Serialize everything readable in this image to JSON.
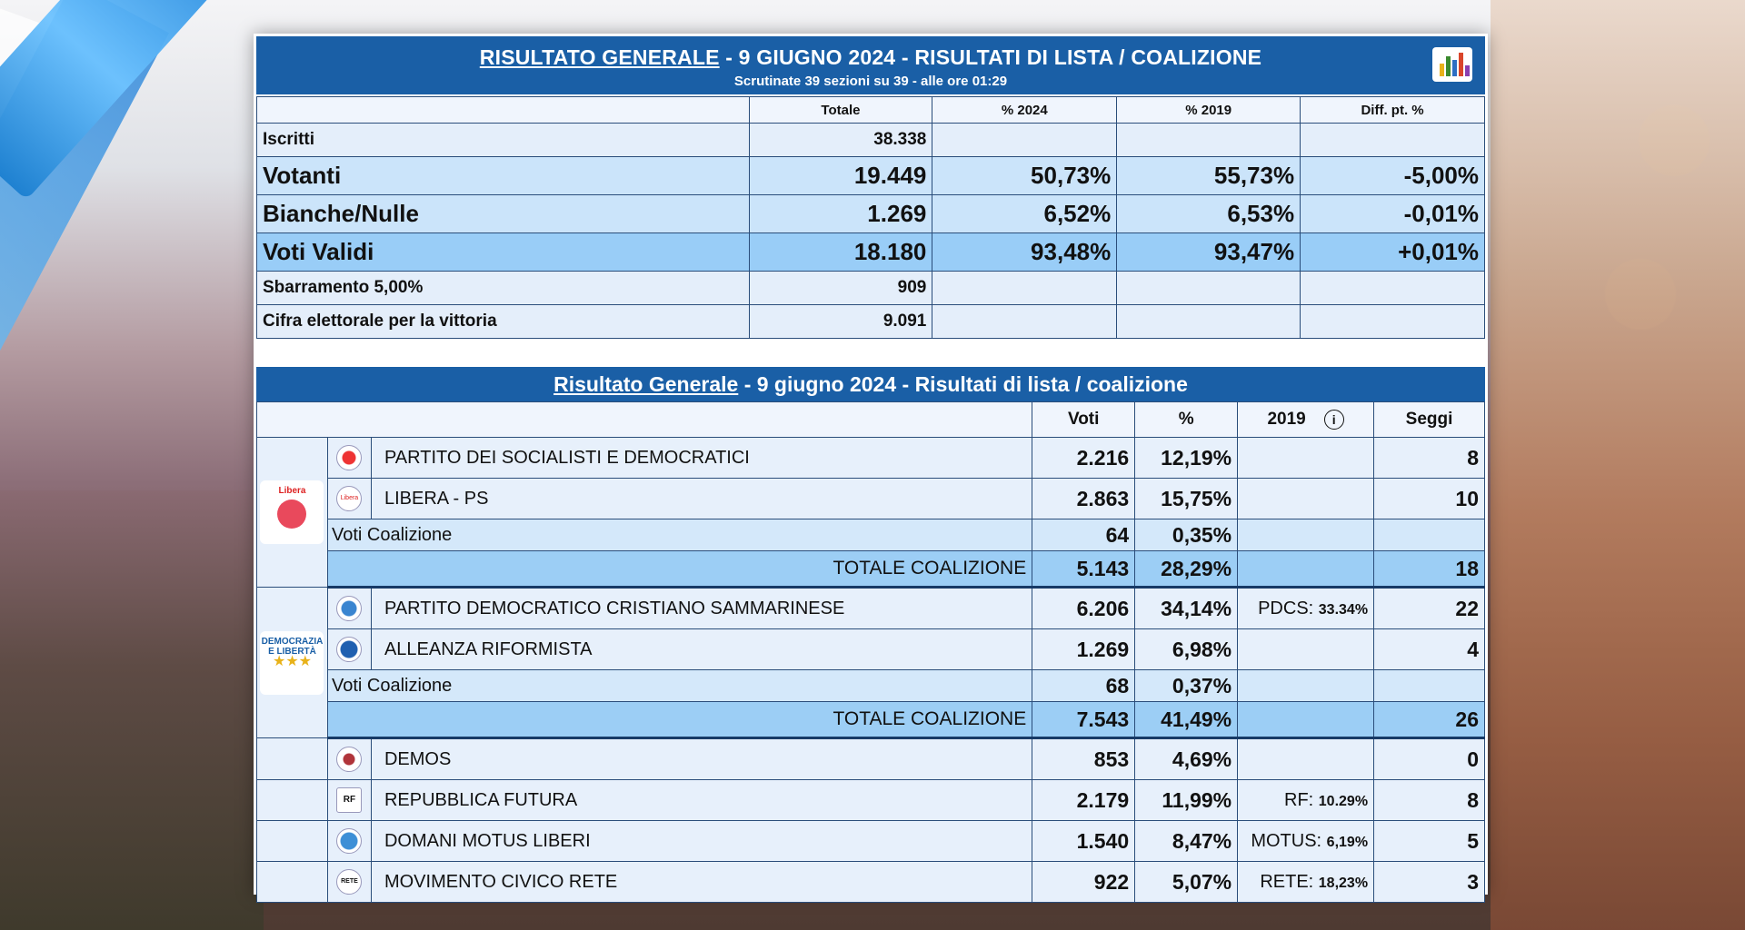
{
  "header1": {
    "title_link": "RISULTATO GENERALE",
    "title_rest": " - 9 GIUGNO 2024 - RISULTATI DI LISTA / COALIZIONE",
    "subtitle": "Scrutinate 39 sezioni su 39 - alle ore 01:29"
  },
  "summary": {
    "headers": [
      "Totale",
      "% 2024",
      "% 2019",
      "Diff. pt. %"
    ],
    "rows": [
      {
        "label": "Iscritti",
        "total": "38.338",
        "p2024": "",
        "p2019": "",
        "diff": ""
      },
      {
        "label": "Votanti",
        "total": "19.449",
        "p2024": "50,73%",
        "p2019": "55,73%",
        "diff": "-5,00%"
      },
      {
        "label": "Bianche/Nulle",
        "total": "1.269",
        "p2024": "6,52%",
        "p2019": "6,53%",
        "diff": "-0,01%"
      },
      {
        "label": "Voti Validi",
        "total": "18.180",
        "p2024": "93,48%",
        "p2019": "93,47%",
        "diff": "+0,01%"
      },
      {
        "label": "Sbarramento 5,00%",
        "total": "909",
        "p2024": "",
        "p2019": "",
        "diff": ""
      },
      {
        "label": "Cifra elettorale per la vittoria",
        "total": "9.091",
        "p2024": "",
        "p2019": "",
        "diff": ""
      }
    ]
  },
  "header2": {
    "title_link": "Risultato Generale",
    "title_rest": " - 9 giugno 2024 - Risultati di lista / coalizione"
  },
  "results": {
    "headers": {
      "votes": "Voti",
      "pct": "%",
      "y2019": "2019",
      "info": "i",
      "seats": "Seggi"
    },
    "coalition1": {
      "logo_text": "Libera",
      "parties": [
        {
          "name": "PARTITO DEI SOCIALISTI E DEMOCRATICI",
          "votes": "2.216",
          "pct": "12,19%",
          "ref_label": "",
          "ref_value": "",
          "seats": "8"
        },
        {
          "name": "LIBERA - PS",
          "logo_text": "Libera",
          "votes": "2.863",
          "pct": "15,75%",
          "ref_label": "",
          "ref_value": "",
          "seats": "10"
        }
      ],
      "coalition_votes_label": "Voti Coalizione",
      "coalition_votes": "64",
      "coalition_votes_pct": "0,35%",
      "total_label": "TOTALE COALIZIONE",
      "total_votes": "5.143",
      "total_pct": "28,29%",
      "total_seats": "18"
    },
    "coalition2": {
      "logo_text": "DEMOCRAZIA E LIBERTÀ",
      "parties": [
        {
          "name": "PARTITO DEMOCRATICO CRISTIANO SAMMARINESE",
          "votes": "6.206",
          "pct": "34,14%",
          "ref_label": "PDCS:",
          "ref_value": "33.34%",
          "seats": "22"
        },
        {
          "name": "ALLEANZA RIFORMISTA",
          "votes": "1.269",
          "pct": "6,98%",
          "ref_label": "",
          "ref_value": "",
          "seats": "4"
        }
      ],
      "coalition_votes_label": "Voti Coalizione",
      "coalition_votes": "68",
      "coalition_votes_pct": "0,37%",
      "total_label": "TOTALE COALIZIONE",
      "total_votes": "7.543",
      "total_pct": "41,49%",
      "total_seats": "26"
    },
    "singles": [
      {
        "name": "DEMOS",
        "votes": "853",
        "pct": "4,69%",
        "ref_label": "",
        "ref_value": "",
        "seats": "0"
      },
      {
        "name": "REPUBBLICA FUTURA",
        "logo_text": "RF",
        "votes": "2.179",
        "pct": "11,99%",
        "ref_label": "RF:",
        "ref_value": "10.29%",
        "seats": "8"
      },
      {
        "name": "DOMANI MOTUS LIBERI",
        "votes": "1.540",
        "pct": "8,47%",
        "ref_label": "MOTUS:",
        "ref_value": "6,19%",
        "seats": "5"
      },
      {
        "name": "MOVIMENTO CIVICO RETE",
        "logo_text": "RETE",
        "votes": "922",
        "pct": "5,07%",
        "ref_label": "RETE:",
        "ref_value": "18,23%",
        "seats": "3"
      }
    ]
  },
  "colors": {
    "header_blue": "#1a5fa6",
    "row_light": "#e7f0fb",
    "row_total": "#9ccef5"
  }
}
